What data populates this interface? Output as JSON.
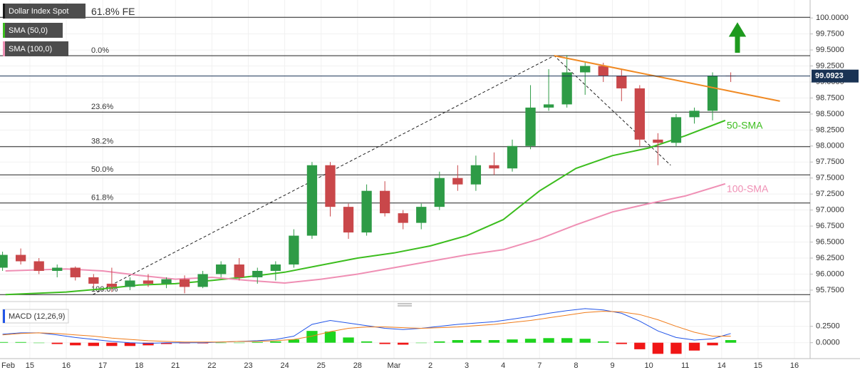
{
  "chart_data": [
    {
      "type": "candlestick",
      "title": "Dollar Index Spot",
      "x": [
        0.25,
        0.75,
        1.25,
        1.75,
        2.25,
        2.75,
        3.25,
        3.75,
        4.25,
        4.75,
        5.25,
        5.75,
        6.25,
        6.75,
        7.25,
        7.75,
        8.25,
        8.75,
        9.25,
        9.75,
        10.25,
        10.75,
        11.25,
        11.75,
        12.25,
        12.75,
        13.25,
        13.75,
        14.25,
        14.75,
        15.25,
        15.75,
        16.25,
        16.75,
        17.25,
        17.75,
        18.25,
        18.75,
        19.25,
        19.75,
        20.25
      ],
      "open": [
        96.1,
        96.3,
        96.2,
        96.05,
        96.1,
        95.95,
        95.85,
        95.8,
        95.9,
        95.85,
        95.92,
        95.8,
        96.0,
        96.15,
        95.95,
        96.05,
        96.15,
        96.6,
        97.7,
        97.05,
        96.65,
        97.3,
        96.95,
        96.8,
        97.05,
        97.5,
        97.4,
        97.7,
        97.65,
        98.0,
        98.6,
        98.65,
        99.15,
        99.25,
        99.1,
        98.9,
        98.1,
        98.05,
        98.45,
        98.55,
        99.1
      ],
      "high": [
        96.35,
        96.4,
        96.25,
        96.15,
        96.12,
        96.0,
        96.1,
        95.95,
        96.0,
        95.95,
        95.98,
        96.05,
        96.2,
        96.25,
        96.1,
        96.2,
        96.7,
        97.75,
        97.75,
        97.1,
        97.4,
        97.45,
        97.0,
        97.1,
        97.6,
        97.7,
        97.85,
        97.9,
        98.1,
        98.95,
        99.2,
        99.42,
        99.3,
        99.3,
        99.2,
        98.95,
        98.2,
        98.5,
        98.6,
        99.15,
        99.15
      ],
      "low": [
        96.05,
        96.15,
        96.0,
        95.95,
        95.9,
        95.8,
        95.72,
        95.75,
        95.8,
        95.78,
        95.7,
        95.78,
        95.95,
        95.9,
        95.85,
        95.9,
        96.1,
        96.55,
        96.9,
        96.55,
        96.6,
        96.9,
        96.7,
        96.7,
        97.0,
        97.3,
        97.3,
        97.55,
        97.6,
        97.95,
        98.55,
        98.6,
        98.8,
        99.0,
        98.7,
        98.0,
        97.7,
        98.0,
        98.35,
        98.4,
        99.0
      ],
      "close": [
        96.3,
        96.2,
        96.05,
        96.1,
        95.95,
        95.85,
        95.8,
        95.9,
        95.85,
        95.92,
        95.8,
        96.0,
        96.15,
        95.95,
        96.05,
        96.15,
        96.6,
        97.7,
        97.05,
        96.65,
        97.3,
        96.95,
        96.8,
        97.05,
        97.5,
        97.4,
        97.7,
        97.65,
        98.0,
        98.6,
        98.65,
        99.15,
        99.25,
        99.1,
        98.9,
        98.1,
        98.05,
        98.45,
        98.55,
        99.1,
        99.09
      ],
      "up_color": "#2e9b46",
      "down_color": "#c9474a",
      "series": [
        {
          "name": "SMA (50,0)",
          "color": "#3cbd1e",
          "annotation": "50-SMA",
          "x": [
            0.33,
            2,
            3,
            4,
            5,
            6,
            7,
            8,
            9,
            10,
            11,
            12,
            13,
            14,
            15,
            16,
            17,
            18,
            19,
            20.1
          ],
          "values": [
            95.68,
            95.72,
            95.77,
            95.83,
            95.85,
            95.9,
            95.96,
            96.03,
            96.14,
            96.25,
            96.33,
            96.44,
            96.6,
            96.85,
            97.3,
            97.65,
            97.85,
            97.97,
            98.16,
            98.4
          ]
        },
        {
          "name": "SMA (100,0)",
          "color": "#ef8fb4",
          "annotation": "100-SMA",
          "x": [
            0.33,
            2,
            3,
            4,
            5,
            6,
            7,
            8,
            9,
            10,
            11,
            12,
            13,
            14,
            15,
            16,
            17,
            18,
            19,
            20.1
          ],
          "values": [
            96.05,
            96.08,
            96.05,
            95.98,
            95.92,
            95.95,
            95.9,
            95.86,
            95.92,
            96.0,
            96.1,
            96.2,
            96.3,
            96.38,
            96.55,
            96.77,
            96.97,
            97.1,
            97.22,
            97.41
          ]
        }
      ],
      "fib_levels": [
        {
          "label": "61.8% FE",
          "value": 100.01
        },
        {
          "label": "0.0%",
          "value": 99.41
        },
        {
          "label": "23.6%",
          "value": 98.53
        },
        {
          "label": "38.2%",
          "value": 97.99
        },
        {
          "label": "50.0%",
          "value": 97.55
        },
        {
          "label": "61.8%",
          "value": 97.11
        },
        {
          "label": "100.0%",
          "value": 95.68
        }
      ],
      "fib_path": {
        "x": [
          2.73,
          15.4,
          18.6
        ],
        "y": [
          95.68,
          99.41,
          97.7
        ]
      },
      "trendline": {
        "x": [
          15.4,
          21.6
        ],
        "y": [
          99.41,
          98.7
        ],
        "color": "#f08a24"
      },
      "last_price": 99.0923,
      "xlim": [
        0.18,
        22.43
      ],
      "ylim": [
        95.66,
        100.28
      ],
      "yticks": [
        {
          "value": 95.75,
          "label": "95.7500"
        },
        {
          "value": 96,
          "label": "96.0000"
        },
        {
          "value": 96.25,
          "label": "96.2500"
        },
        {
          "value": 96.5,
          "label": "96.5000"
        },
        {
          "value": 96.75,
          "label": "96.7500"
        },
        {
          "value": 97,
          "label": "97.0000"
        },
        {
          "value": 97.25,
          "label": "97.2500"
        },
        {
          "value": 97.5,
          "label": "97.5000"
        },
        {
          "value": 97.75,
          "label": "97.7500"
        },
        {
          "value": 98,
          "label": "98.0000"
        },
        {
          "value": 98.25,
          "label": "98.2500"
        },
        {
          "value": 98.5,
          "label": "98.5000"
        },
        {
          "value": 98.75,
          "label": "98.7500"
        },
        {
          "value": 99,
          "label": "99.0000"
        },
        {
          "value": 99.25,
          "label": "99.2500"
        },
        {
          "value": 99.5,
          "label": "99.5000"
        },
        {
          "value": 99.75,
          "label": "99.7500"
        },
        {
          "value": 100,
          "label": "100.0000"
        }
      ],
      "xticks": [
        {
          "value": 0,
          "label": "Feb"
        },
        {
          "value": 1,
          "label": "15"
        },
        {
          "value": 2,
          "label": "16"
        },
        {
          "value": 3,
          "label": "17"
        },
        {
          "value": 4,
          "label": "18"
        },
        {
          "value": 5,
          "label": "21"
        },
        {
          "value": 6,
          "label": "22"
        },
        {
          "value": 7,
          "label": "23"
        },
        {
          "value": 8,
          "label": "24"
        },
        {
          "value": 9,
          "label": "25"
        },
        {
          "value": 10,
          "label": "28"
        },
        {
          "value": 11,
          "label": "Mar"
        },
        {
          "value": 12,
          "label": "2"
        },
        {
          "value": 13,
          "label": "3"
        },
        {
          "value": 14,
          "label": "4"
        },
        {
          "value": 15,
          "label": "7"
        },
        {
          "value": 16,
          "label": "8"
        },
        {
          "value": 17,
          "label": "9"
        },
        {
          "value": 18,
          "label": "10"
        },
        {
          "value": 19,
          "label": "11"
        },
        {
          "value": 20,
          "label": "14"
        },
        {
          "value": 21,
          "label": "15"
        },
        {
          "value": 22,
          "label": "16"
        }
      ],
      "grid": true
    },
    {
      "type": "macd",
      "title": "MACD (12,26,9)",
      "x": [
        0.25,
        0.75,
        1.25,
        1.75,
        2.25,
        2.75,
        3.25,
        3.75,
        4.25,
        4.75,
        5.25,
        5.75,
        6.25,
        6.75,
        7.25,
        7.75,
        8.25,
        8.75,
        9.25,
        9.75,
        10.25,
        10.75,
        11.25,
        11.75,
        12.25,
        12.75,
        13.25,
        13.75,
        14.25,
        14.75,
        15.25,
        15.75,
        16.25,
        16.75,
        17.25,
        17.75,
        18.25,
        18.75,
        19.25,
        19.75,
        20.25
      ],
      "series": [
        {
          "color": "#2255e8",
          "values": [
            0.13,
            0.15,
            0.15,
            0.12,
            0.08,
            0.05,
            0.02,
            0.0,
            -0.01,
            0.0,
            0.0,
            0.0,
            0.01,
            0.02,
            0.03,
            0.05,
            0.1,
            0.28,
            0.34,
            0.3,
            0.26,
            0.22,
            0.2,
            0.22,
            0.25,
            0.28,
            0.3,
            0.32,
            0.36,
            0.4,
            0.45,
            0.49,
            0.52,
            0.5,
            0.45,
            0.33,
            0.18,
            0.08,
            0.04,
            0.06,
            0.14
          ]
        },
        {
          "color": "#f07c1a",
          "values": [
            0.12,
            0.14,
            0.15,
            0.14,
            0.12,
            0.1,
            0.07,
            0.05,
            0.03,
            0.02,
            0.01,
            0.01,
            0.01,
            0.02,
            0.02,
            0.03,
            0.05,
            0.1,
            0.17,
            0.22,
            0.24,
            0.24,
            0.23,
            0.22,
            0.23,
            0.24,
            0.26,
            0.28,
            0.31,
            0.34,
            0.38,
            0.42,
            0.46,
            0.48,
            0.47,
            0.43,
            0.35,
            0.25,
            0.16,
            0.1,
            0.1
          ]
        }
      ],
      "histogram": {
        "up_color": "#1ed41e",
        "down_color": "#f01616",
        "values": [
          0.01,
          0.01,
          0,
          -0.02,
          -0.04,
          -0.05,
          -0.05,
          -0.05,
          -0.04,
          -0.02,
          -0.01,
          -0.01,
          0,
          0,
          0.01,
          0.02,
          0.05,
          0.18,
          0.17,
          0.08,
          0.02,
          -0.02,
          -0.03,
          0,
          0.02,
          0.04,
          0.04,
          0.04,
          0.05,
          0.06,
          0.07,
          0.07,
          0.06,
          0.02,
          -0.02,
          -0.1,
          -0.17,
          -0.17,
          -0.12,
          -0.04,
          0.04
        ]
      },
      "xlim": [
        0.18,
        22.43
      ],
      "ylim": [
        -0.21,
        0.53
      ],
      "yticks": [
        {
          "value": 0.25,
          "label": "0.2500"
        },
        {
          "value": 0,
          "label": "0.0000"
        }
      ]
    }
  ]
}
